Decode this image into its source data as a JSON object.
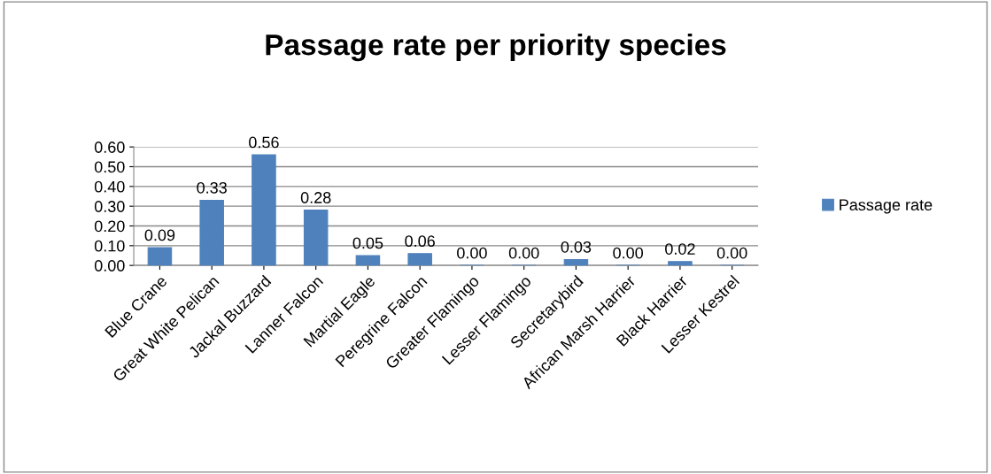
{
  "chart_data": {
    "type": "bar",
    "title": "Passage rate per priority species",
    "categories": [
      "Blue Crane",
      "Great White Pelican",
      "Jackal Buzzard",
      "Lanner Falcon",
      "Martial Eagle",
      "Peregrine Falcon",
      "Greater Flamingo",
      "Lesser Flamingo",
      "Secretarybird",
      "African Marsh Harrier",
      "Black Harrier",
      "Lesser Kestrel"
    ],
    "series": [
      {
        "name": "Passage rate",
        "color": "#4f81bd",
        "values": [
          0.09,
          0.33,
          0.56,
          0.28,
          0.05,
          0.06,
          0.0,
          0.0,
          0.03,
          0.0,
          0.02,
          0.0
        ],
        "value_labels": [
          "0.09",
          "0.33",
          "0.56",
          "0.28",
          "0.05",
          "0.06",
          "0.00",
          "0.00",
          "0.03",
          "0.00",
          "0.02",
          "0.00"
        ]
      }
    ],
    "ylim": [
      0,
      0.6
    ],
    "yticks": [
      {
        "value": 0,
        "label": "0.00"
      },
      {
        "value": 0.1,
        "label": "0.10"
      },
      {
        "value": 0.2,
        "label": "0.20"
      },
      {
        "value": 0.3,
        "label": "0.30"
      },
      {
        "value": 0.4,
        "label": "0.40"
      },
      {
        "value": 0.5,
        "label": "0.50"
      },
      {
        "value": 0.6,
        "label": "0.60"
      }
    ],
    "grid": "y",
    "legend": "right"
  }
}
